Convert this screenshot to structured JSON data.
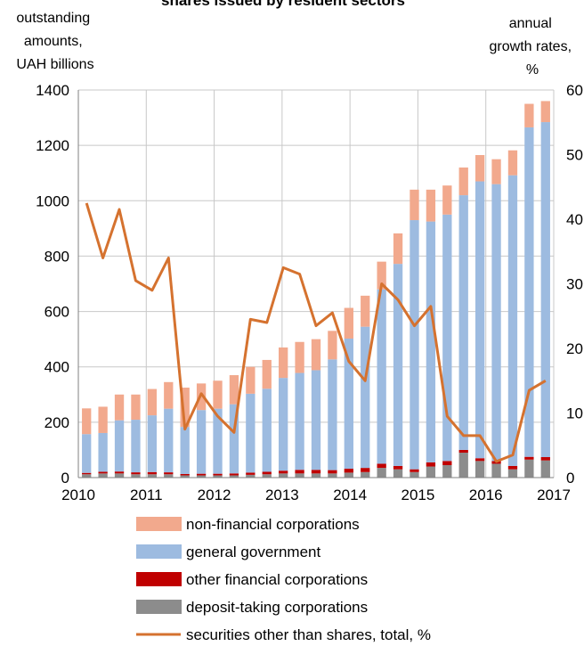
{
  "chart_data": {
    "type": "bar",
    "title": "shares issued by resident sectors",
    "left_axis_label": [
      "outstanding",
      "amounts,",
      "UAH billions"
    ],
    "right_axis_label": [
      "annual",
      "growth rates,",
      "%"
    ],
    "ylim_left": [
      0,
      1400
    ],
    "ylim_right": [
      0,
      60
    ],
    "left_ticks": [
      "0",
      "200",
      "400",
      "600",
      "800",
      "1000",
      "1200",
      "1400"
    ],
    "right_ticks": [
      "0",
      "10",
      "20",
      "30",
      "40",
      "50",
      "60"
    ],
    "x_ticks": [
      "2010",
      "2011",
      "2012",
      "2013",
      "2014",
      "2015",
      "2016",
      "2017"
    ],
    "grid": "horizontal",
    "legend_position": "bottom",
    "series": [
      {
        "name": "deposit-taking corporations",
        "kind": "stacked-bar",
        "color": "#8c8c8c",
        "values": [
          12,
          15,
          15,
          12,
          12,
          12,
          8,
          8,
          8,
          8,
          10,
          12,
          15,
          15,
          15,
          15,
          18,
          20,
          35,
          30,
          20,
          40,
          45,
          90,
          60,
          50,
          30,
          65,
          62
        ]
      },
      {
        "name": "other financial corporations",
        "kind": "stacked-bar",
        "color": "#c00000",
        "values": [
          5,
          6,
          7,
          7,
          8,
          7,
          5,
          6,
          6,
          7,
          8,
          9,
          10,
          13,
          13,
          12,
          14,
          15,
          15,
          12,
          10,
          15,
          15,
          10,
          10,
          10,
          12,
          10,
          12
        ]
      },
      {
        "name": "general government",
        "kind": "stacked-bar",
        "color": "#9dbbe0",
        "values": [
          140,
          140,
          185,
          190,
          205,
          230,
          170,
          230,
          235,
          250,
          285,
          300,
          335,
          350,
          360,
          400,
          470,
          510,
          630,
          730,
          900,
          870,
          890,
          920,
          1000,
          1000,
          1050,
          1190,
          1210
        ]
      },
      {
        "name": "non-financial corporations",
        "kind": "stacked-bar",
        "color": "#f2a98d",
        "values": [
          93,
          95,
          93,
          91,
          95,
          96,
          142,
          96,
          101,
          105,
          97,
          104,
          110,
          112,
          112,
          103,
          111,
          112,
          100,
          110,
          110,
          115,
          105,
          100,
          95,
          90,
          90,
          85,
          76
        ]
      },
      {
        "name": "securities other than shares, total, %",
        "kind": "line",
        "axis": "right",
        "color": "#d5722f",
        "values": [
          42.5,
          34,
          41.5,
          30.5,
          29,
          34,
          7.5,
          13,
          9.5,
          7,
          24.5,
          24,
          32.5,
          31.5,
          23.5,
          25.5,
          18,
          15,
          30,
          27.5,
          23.5,
          26.5,
          9.5,
          6.5,
          6.5,
          2.5,
          3.5,
          13.5,
          15
        ]
      }
    ]
  },
  "legend": [
    {
      "label": "non-financial corporations",
      "color": "#f2a98d",
      "kind": "bar"
    },
    {
      "label": "general government",
      "color": "#9dbbe0",
      "kind": "bar"
    },
    {
      "label": "other financial corporations",
      "color": "#c00000",
      "kind": "bar"
    },
    {
      "label": "deposit-taking corporations",
      "color": "#8c8c8c",
      "kind": "bar"
    },
    {
      "label": "securities other than shares, total, %",
      "color": "#d5722f",
      "kind": "line"
    }
  ]
}
